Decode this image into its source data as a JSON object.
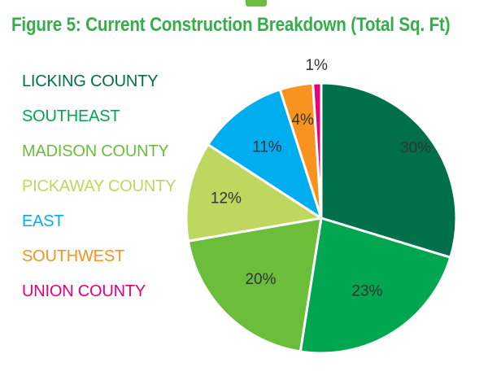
{
  "title": "Figure 5: Current Construction Breakdown (Total Sq. Ft)",
  "chart_data": {
    "type": "pie",
    "title": "Figure 5: Current Construction Breakdown (Total Sq. Ft)",
    "legend_position": "left",
    "slices": [
      {
        "label": "LICKING COUNTY",
        "value": 30,
        "display": "30%",
        "color": "#00704a"
      },
      {
        "label": "SOUTHEAST",
        "value": 23,
        "display": "23%",
        "color": "#00a650"
      },
      {
        "label": "MADISON COUNTY",
        "value": 20,
        "display": "20%",
        "color": "#6bbd3a"
      },
      {
        "label": "PICKAWAY COUNTY",
        "value": 12,
        "display": "12%",
        "color": "#bed75f"
      },
      {
        "label": "EAST",
        "value": 11,
        "display": "11%",
        "color": "#00aeef"
      },
      {
        "label": "SOUTHWEST",
        "value": 4,
        "display": "4%",
        "color": "#f7931e"
      },
      {
        "label": "UNION COUNTY",
        "value": 1,
        "display": "1%",
        "color": "#e6007e"
      }
    ]
  }
}
